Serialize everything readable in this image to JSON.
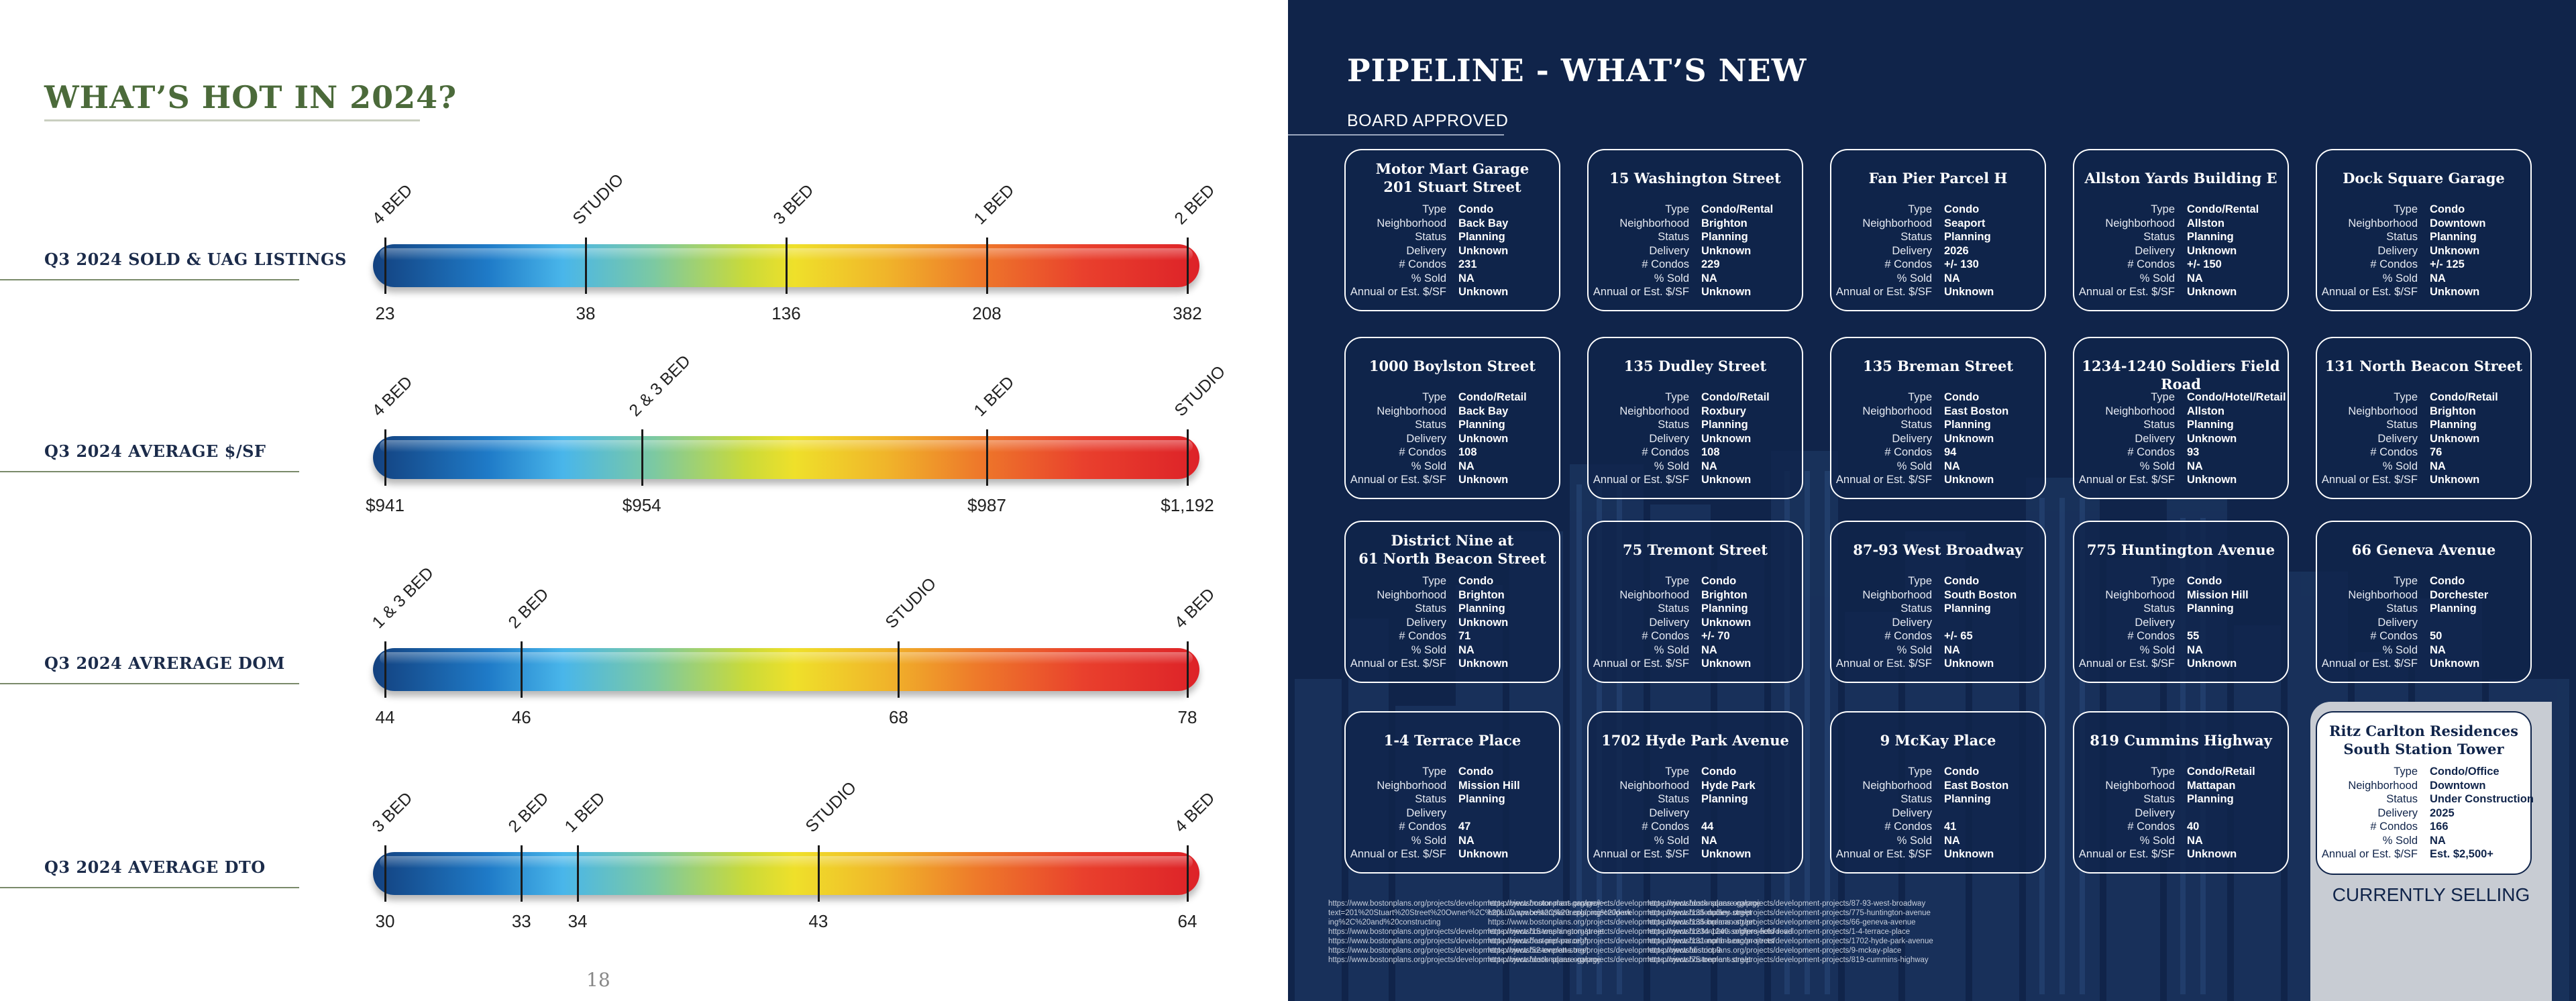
{
  "left_page": {
    "title": "WHAT’S HOT IN 2024?",
    "page_number": "18",
    "rows": [
      {
        "label": "Q3 2024 SOLD & UAG LISTINGS",
        "ticks": [
          {
            "category": "4 BED",
            "value": "23",
            "pos": 0.0
          },
          {
            "category": "STUDIO",
            "value": "38",
            "pos": 0.25
          },
          {
            "category": "3 BED",
            "value": "136",
            "pos": 0.5
          },
          {
            "category": "1 BED",
            "value": "208",
            "pos": 0.75
          },
          {
            "category": "2 BED",
            "value": "382",
            "pos": 1.0
          }
        ]
      },
      {
        "label": "Q3 2024 AVERAGE $/SF",
        "ticks": [
          {
            "category": "4 BED",
            "value": "$941",
            "pos": 0.0
          },
          {
            "category": "2 & 3 BED",
            "value": "$954",
            "pos": 0.32
          },
          {
            "category": "1 BED",
            "value": "$987",
            "pos": 0.75
          },
          {
            "category": "STUDIO",
            "value": "$1,192",
            "pos": 1.0
          }
        ]
      },
      {
        "label": "Q3 2024 AVRERAGE DOM",
        "ticks": [
          {
            "category": "1 & 3 BED",
            "value": "44",
            "pos": 0.0
          },
          {
            "category": "2 BED",
            "value": "46",
            "pos": 0.17
          },
          {
            "category": "STUDIO",
            "value": "68",
            "pos": 0.64
          },
          {
            "category": "4 BED",
            "value": "78",
            "pos": 1.0
          }
        ]
      },
      {
        "label": "Q3 2024 AVERAGE DTO",
        "ticks": [
          {
            "category": "3 BED",
            "value": "30",
            "pos": 0.0
          },
          {
            "category": "2 BED",
            "value": "33",
            "pos": 0.17
          },
          {
            "category": "1 BED",
            "value": "34",
            "pos": 0.24
          },
          {
            "category": "STUDIO",
            "value": "43",
            "pos": 0.54
          },
          {
            "category": "4 BED",
            "value": "64",
            "pos": 1.0
          }
        ]
      }
    ]
  },
  "right_page": {
    "title": "PIPELINE - WHAT’S NEW",
    "section_label": "BOARD APPROVED",
    "field_labels": [
      "Type",
      "Neighborhood",
      "Status",
      "Delivery",
      "# Condos",
      "% Sold",
      "Annual or Est. $/SF"
    ],
    "projects": [
      {
        "name": "Motor Mart Garage\n201 Stuart Street",
        "values": [
          "Condo",
          "Back Bay",
          "Planning",
          "Unknown",
          "231",
          "NA",
          "Unknown"
        ]
      },
      {
        "name": "15 Washington Street",
        "values": [
          "Condo/Rental",
          "Brighton",
          "Planning",
          "Unknown",
          "229",
          "NA",
          "Unknown"
        ]
      },
      {
        "name": "Fan Pier Parcel H",
        "values": [
          "Condo",
          "Seaport",
          "Planning",
          "2026",
          "+/- 130",
          "NA",
          "Unknown"
        ]
      },
      {
        "name": "Allston Yards Building E",
        "values": [
          "Condo/Rental",
          "Allston",
          "Planning",
          "Unknown",
          "+/- 150",
          "NA",
          "Unknown"
        ]
      },
      {
        "name": "Dock Square Garage",
        "values": [
          "Condo",
          "Downtown",
          "Planning",
          "Unknown",
          "+/- 125",
          "NA",
          "Unknown"
        ]
      },
      {
        "name": "1000 Boylston Street",
        "values": [
          "Condo/Retail",
          "Back Bay",
          "Planning",
          "Unknown",
          "108",
          "NA",
          "Unknown"
        ]
      },
      {
        "name": "135 Dudley Street",
        "values": [
          "Condo/Retail",
          "Roxbury",
          "Planning",
          "Unknown",
          "108",
          "NA",
          "Unknown"
        ]
      },
      {
        "name": "135 Breman Street",
        "values": [
          "Condo",
          "East Boston",
          "Planning",
          "Unknown",
          "94",
          "NA",
          "Unknown"
        ]
      },
      {
        "name": "1234-1240 Soldiers Field Road",
        "values": [
          "Condo/Hotel/Retail",
          "Allston",
          "Planning",
          "Unknown",
          "93",
          "NA",
          "Unknown"
        ]
      },
      {
        "name": "131 North Beacon Street",
        "values": [
          "Condo/Retail",
          "Brighton",
          "Planning",
          "Unknown",
          "76",
          "NA",
          "Unknown"
        ]
      },
      {
        "name": "District Nine at\n61 North Beacon Street",
        "values": [
          "Condo",
          "Brighton",
          "Planning",
          "Unknown",
          "71",
          "NA",
          "Unknown"
        ]
      },
      {
        "name": "75 Tremont Street",
        "values": [
          "Condo",
          "Brighton",
          "Planning",
          "Unknown",
          "+/- 70",
          "NA",
          "Unknown"
        ]
      },
      {
        "name": "87-93 West Broadway",
        "values": [
          "Condo",
          "South Boston",
          "Planning",
          "",
          "+/- 65",
          "NA",
          "Unknown"
        ]
      },
      {
        "name": "775 Huntington Avenue",
        "values": [
          "Condo",
          "Mission Hill",
          "Planning",
          "",
          "55",
          "NA",
          "Unknown"
        ]
      },
      {
        "name": "66 Geneva Avenue",
        "values": [
          "Condo",
          "Dorchester",
          "Planning",
          "",
          "50",
          "NA",
          "Unknown"
        ]
      },
      {
        "name": "1-4 Terrace Place",
        "values": [
          "Condo",
          "Mission Hill",
          "Planning",
          "",
          "47",
          "NA",
          "Unknown"
        ]
      },
      {
        "name": "1702 Hyde Park Avenue",
        "values": [
          "Condo",
          "Hyde Park",
          "Planning",
          "",
          "44",
          "NA",
          "Unknown"
        ]
      },
      {
        "name": "9 McKay Place",
        "values": [
          "Condo",
          "East Boston",
          "Planning",
          "",
          "41",
          "NA",
          "Unknown"
        ]
      },
      {
        "name": "819 Cummins Highway",
        "values": [
          "Condo/Retail",
          "Mattapan",
          "Planning",
          "",
          "40",
          "NA",
          "Unknown"
        ]
      }
    ],
    "featured": {
      "name": "Ritz Carlton Residences\nSouth Station Tower",
      "values": [
        "Condo/Office",
        "Downtown",
        "Under Construction",
        "2025",
        "166",
        "NA",
        "Est. $2,500+"
      ],
      "label": "CURRENTLY SELLING"
    },
    "source_urls": [
      "https://www.bostonplans.org/projects/development-projects/motor-mart-garage#:~:\ntext=201%20Stuart%20Street%20Owner%2C%20LLC,space%2C%20replacing%20park\ning%2C%20and%20constructing\nhttps://www.bostonplans.org/projects/development-projects/15-washington-street\nhttps://www.bostonplans.org/projects/development-projects/fan-pier-parcel-h\nhttps://www.bostonplans.org/projects/development-projects/52-everett-street\nhttps://www.bostonplans.org/projects/development-projects/dock-square-garage",
      "https://www.bostonplans.org/projects/development-projects/dock-square-garage\nhttps://www.bostonplans.org/projects/development-projects/135-dudley-street\nhttps://www.bostonplans.org/projects/development-projects/135-breman-street\nhttps://www.bostonplans.org/projects/development-projects/1234-1240-soldiers-field-road\nhttps://www.bostonplans.org/projects/development-projects/131-north-beacon-street\nhttps://www.bostonplans.org/projects/development-projects/district-9\nhttps://www.bostonplans.org/projects/development-projects/75-tremont-street",
      "https://www.bostonplans.org/projects/development-projects/87-93-west-broadway\nhttps://www.bostonplans.org/projects/development-projects/775-huntington-avenue\nhttps://www.bostonplans.org/projects/development-projects/66-geneva-avenue\nhttps://www.bostonplans.org/projects/development-projects/1-4-terrace-place\nhttps://www.bostonplans.org/projects/development-projects/1702-hyde-park-avenue\nhttps://www.bostonplans.org/projects/development-projects/9-mckay-place\nhttps://www.bostonplans.org/projects/development-projects/819-cummins-highway"
    ]
  }
}
